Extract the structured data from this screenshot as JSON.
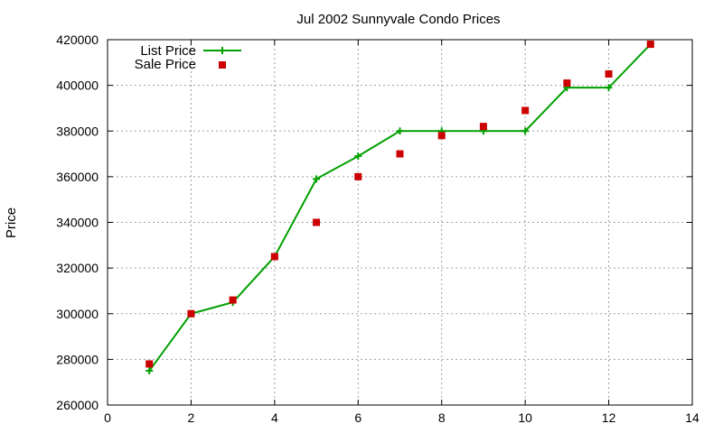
{
  "chart_data": {
    "type": "line",
    "title": "Jul 2002 Sunnyvale Condo Prices",
    "xlabel": "",
    "ylabel": "Price",
    "xlim": [
      0,
      14
    ],
    "ylim": [
      260000,
      420000
    ],
    "x_ticks": [
      0,
      2,
      4,
      6,
      8,
      10,
      12,
      14
    ],
    "y_ticks": [
      260000,
      280000,
      300000,
      320000,
      340000,
      360000,
      380000,
      400000,
      420000
    ],
    "grid": true,
    "legend_position": "top-left",
    "series": [
      {
        "name": "List Price",
        "style": "line-with-plus-markers",
        "color": "#00a000",
        "x": [
          1,
          2,
          3,
          4,
          5,
          6,
          7,
          8,
          9,
          10,
          11,
          12,
          13
        ],
        "y": [
          275000,
          300000,
          305000,
          325000,
          359000,
          369000,
          380000,
          380000,
          380000,
          380000,
          399000,
          399000,
          418000
        ]
      },
      {
        "name": "Sale Price",
        "style": "square-points",
        "color": "#cc0000",
        "x": [
          1,
          2,
          3,
          4,
          5,
          6,
          7,
          8,
          9,
          10,
          11,
          12,
          13
        ],
        "y": [
          278000,
          300000,
          306000,
          325000,
          340000,
          360000,
          370000,
          378000,
          382000,
          389000,
          401000,
          405000,
          418000
        ]
      }
    ]
  }
}
